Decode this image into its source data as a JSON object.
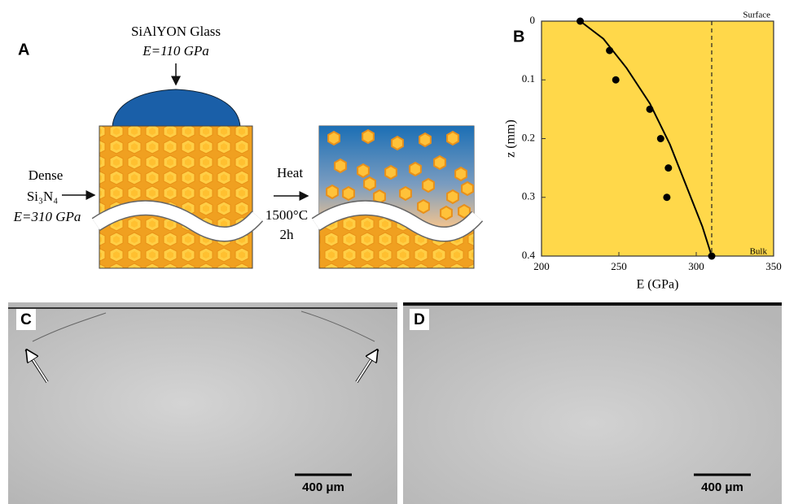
{
  "panel_a": {
    "label": "A",
    "glass_name": "SiAlYON Glass",
    "glass_modulus": "E=110 GPa",
    "substrate_name": "Dense",
    "substrate_formula": "Si₃N₄",
    "substrate_modulus": "E=310 GPa",
    "process": "Heat",
    "temperature": "1500°C",
    "duration": "2h"
  },
  "chart_data": {
    "type": "scatter",
    "label": "B",
    "x_label": "E (GPa)",
    "y_label": "z (mm)",
    "xlim": [
      200,
      350
    ],
    "xticks": [
      200,
      250,
      300,
      350
    ],
    "ylim": [
      0,
      0.4
    ],
    "yticks": [
      0,
      0.1,
      0.2,
      0.3,
      0.4
    ],
    "y_inverted": true,
    "background": "#ffd84a",
    "vline_x": 310,
    "annotations": [
      "Surface",
      "Bulk"
    ],
    "series": [
      {
        "color": "#000000",
        "style": "marker",
        "x": [
          225,
          244,
          248,
          270,
          277,
          282,
          281,
          310
        ],
        "values": [
          0,
          0.05,
          0.1,
          0.15,
          0.2,
          0.25,
          0.3,
          0.4
        ]
      },
      {
        "color": "#000000",
        "style": "line",
        "x": [
          225,
          240,
          255,
          270,
          283,
          295,
          304,
          310
        ],
        "values": [
          0,
          0.03,
          0.08,
          0.14,
          0.21,
          0.29,
          0.35,
          0.4
        ]
      }
    ]
  },
  "panel_c": {
    "label": "C",
    "scale_bar": "400 μm"
  },
  "panel_d": {
    "label": "D",
    "scale_bar": "400 μm"
  }
}
